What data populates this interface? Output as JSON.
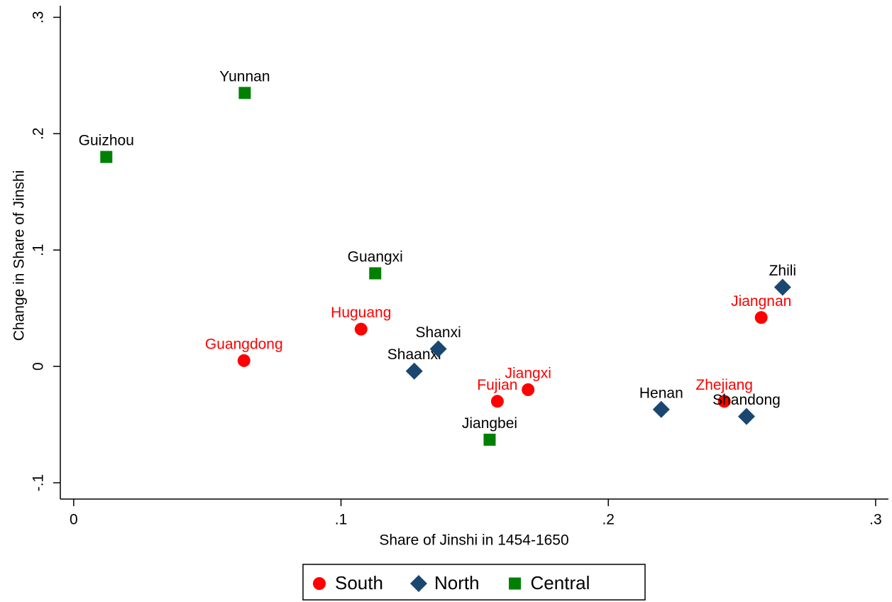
{
  "chart_data": {
    "type": "scatter",
    "x_label": "Share of Jinshi in 1454-1650",
    "y_label": "Change in Share of Jinshi",
    "xlim": [
      -0.005,
      0.3048
    ],
    "ylim": [
      -0.114,
      0.31
    ],
    "xticks": [
      0,
      {
        "value": 0.1,
        "label": ".1"
      },
      {
        "value": 0.2,
        "label": ".2"
      },
      {
        "value": 0.3,
        "label": ".3"
      }
    ],
    "yticks": [
      {
        "value": -0.1,
        "label": "-.1"
      },
      0,
      {
        "value": 0.1,
        "label": ".1"
      },
      {
        "value": 0.2,
        "label": ".2"
      },
      {
        "value": 0.3,
        "label": ".3"
      }
    ],
    "series": [
      {
        "name": "South",
        "color": "#ff0000",
        "marker": "circle",
        "label_color": "#ff0000",
        "labels": [
          "Guangdong",
          "Huguang",
          "Fujian",
          "Jiangxi",
          "Zhejiang",
          "Jiangnan"
        ],
        "x": [
          0.0637,
          0.1075,
          0.1585,
          0.17,
          0.2434,
          0.2572
        ],
        "values": [
          0.005,
          0.032,
          -0.03,
          -0.02,
          -0.03,
          0.042
        ]
      },
      {
        "name": "North",
        "color": "#1a476f",
        "marker": "diamond",
        "label_color": "#000000",
        "labels": [
          "Shaanxi",
          "Shanxi",
          "Henan",
          "Shandong",
          "Zhili"
        ],
        "x": [
          0.1274,
          0.1364,
          0.2198,
          0.2517,
          0.2652
        ],
        "values": [
          -0.004,
          0.015,
          -0.037,
          -0.043,
          0.068
        ]
      },
      {
        "name": "Central",
        "color": "#008000",
        "marker": "square",
        "label_color": "#000000",
        "labels": [
          "Guizhou",
          "Yunnan",
          "Guangxi",
          "Jiangbei"
        ],
        "x": [
          0.0122,
          0.064,
          0.1128,
          0.1556
        ],
        "values": [
          0.18,
          0.235,
          0.08,
          -0.063
        ]
      }
    ]
  }
}
